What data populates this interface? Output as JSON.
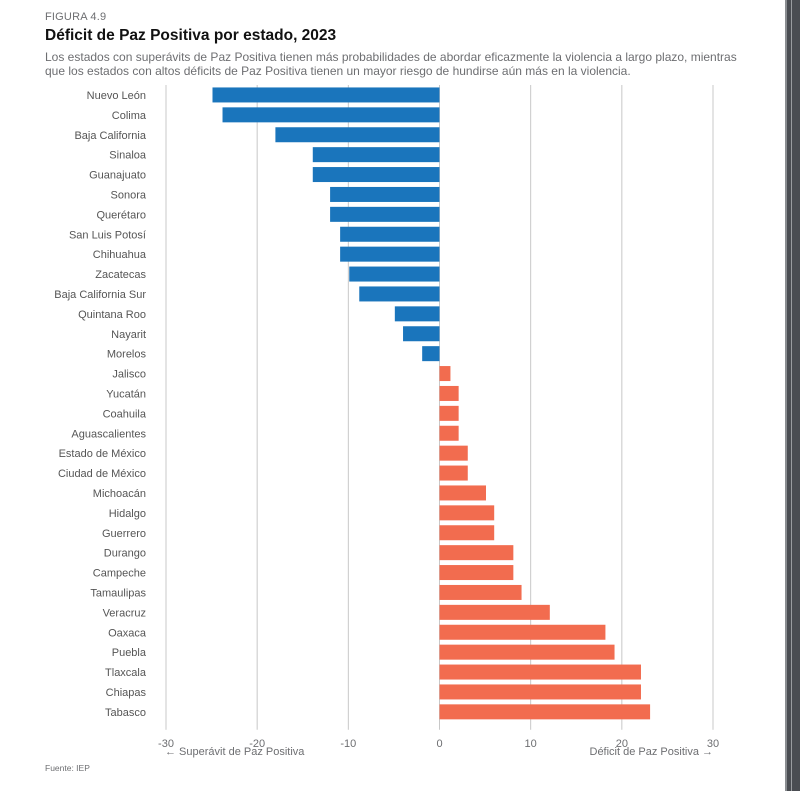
{
  "figure_label": "FIGURA 4.9",
  "source": "Fuente: IEP",
  "colors": {
    "surplus": "#1a75bc",
    "deficit": "#f26c4f",
    "grid": "#c8c8c8"
  },
  "chart_data": {
    "type": "bar",
    "orientation": "horizontal",
    "title": "Déficit de Paz Positiva por estado, 2023",
    "subtitle": "Los estados con superávits de Paz Positiva tienen más probabilidades de abordar eficazmente la violencia a largo plazo, mientras que los estados con altos déficits de Paz Positiva tienen un mayor riesgo de hundirse aún más en la violencia.",
    "xlabel_left": "Superávit de Paz Positiva",
    "xlabel_right": "Déficit de Paz Positiva",
    "xlim": [
      -30,
      30
    ],
    "xticks": [
      -30,
      -20,
      -10,
      0,
      10,
      20,
      30
    ],
    "xtick_labels": [
      "-30",
      "-20",
      "-10",
      "0",
      "10",
      "20",
      "30"
    ],
    "grid": "vertical",
    "categories": [
      "Nuevo León",
      "Colima",
      "Baja California",
      "Sinaloa",
      "Guanajuato",
      "Sonora",
      "Querétaro",
      "San Luis Potosí",
      "Chihuahua",
      "Zacatecas",
      "Baja California Sur",
      "Quintana Roo",
      "Nayarit",
      "Morelos",
      "Jalisco",
      "Yucatán",
      "Coahuila",
      "Aguascalientes",
      "Estado de México",
      "Ciudad de México",
      "Michoacán",
      "Hidalgo",
      "Guerrero",
      "Durango",
      "Campeche",
      "Tamaulipas",
      "Veracruz",
      "Oaxaca",
      "Puebla",
      "Tlaxcala",
      "Chiapas",
      "Tabasco"
    ],
    "values": [
      -24.9,
      -23.8,
      -18.0,
      -13.9,
      -13.9,
      -12.0,
      -12.0,
      -10.9,
      -10.9,
      -9.9,
      -8.8,
      -4.9,
      -4.0,
      -1.9,
      1.2,
      2.1,
      2.1,
      2.1,
      3.1,
      3.1,
      5.1,
      6.0,
      6.0,
      8.1,
      8.1,
      9.0,
      12.1,
      18.2,
      19.2,
      22.1,
      22.1,
      23.1
    ]
  }
}
